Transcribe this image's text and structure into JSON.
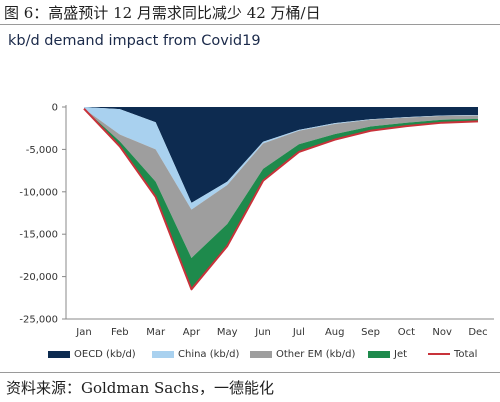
{
  "figure_title": "图 6：高盛预计 12 月需求同比减少 42 万桶/日",
  "chart_title": "kb/d demand impact from Covid19",
  "source_text": "资料来源：Goldman Sachs，一德能化",
  "chart_data": {
    "type": "area",
    "stacked": true,
    "title": "kb/d demand impact from Covid19",
    "xlabel": "",
    "ylabel": "",
    "categories": [
      "Jan",
      "Feb",
      "Mar",
      "Apr",
      "May",
      "Jun",
      "Jul",
      "Aug",
      "Sep",
      "Oct",
      "Nov",
      "Dec"
    ],
    "ylim": [
      -25000,
      0
    ],
    "yticks": [
      0,
      -5000,
      -10000,
      -15000,
      -20000,
      -25000
    ],
    "ytick_labels": [
      "0",
      "-5,000",
      "-10,000",
      "-15,000",
      "-20,000",
      "-25,000"
    ],
    "grid": false,
    "legend_position": "bottom",
    "series": [
      {
        "name": "OECD (kb/d)",
        "type": "area",
        "color": "#0d2b50",
        "values": [
          0,
          -250,
          -1800,
          -11300,
          -8800,
          -4100,
          -2700,
          -1900,
          -1450,
          -1200,
          -1000,
          -950
        ]
      },
      {
        "name": "China (kb/d)",
        "type": "area",
        "color": "#a9d1ef",
        "values": [
          -200,
          -3000,
          -3200,
          -800,
          -400,
          -200,
          -100,
          -100,
          -50,
          -50,
          -50,
          -50
        ]
      },
      {
        "name": "Other EM (kb/d)",
        "type": "area",
        "color": "#9e9e9e",
        "values": [
          0,
          -800,
          -3800,
          -5700,
          -4600,
          -3000,
          -1600,
          -1200,
          -800,
          -600,
          -450,
          -400
        ]
      },
      {
        "name": "Jet",
        "type": "area",
        "color": "#1e8a4c",
        "values": [
          0,
          -600,
          -1800,
          -3700,
          -2600,
          -1400,
          -900,
          -650,
          -500,
          -400,
          -350,
          -300
        ]
      },
      {
        "name": "Total",
        "type": "line",
        "color": "#c8323a",
        "values": [
          -200,
          -4650,
          -10600,
          -21500,
          -16400,
          -8700,
          -5300,
          -3850,
          -2800,
          -2250,
          -1850,
          -1700
        ]
      }
    ]
  }
}
